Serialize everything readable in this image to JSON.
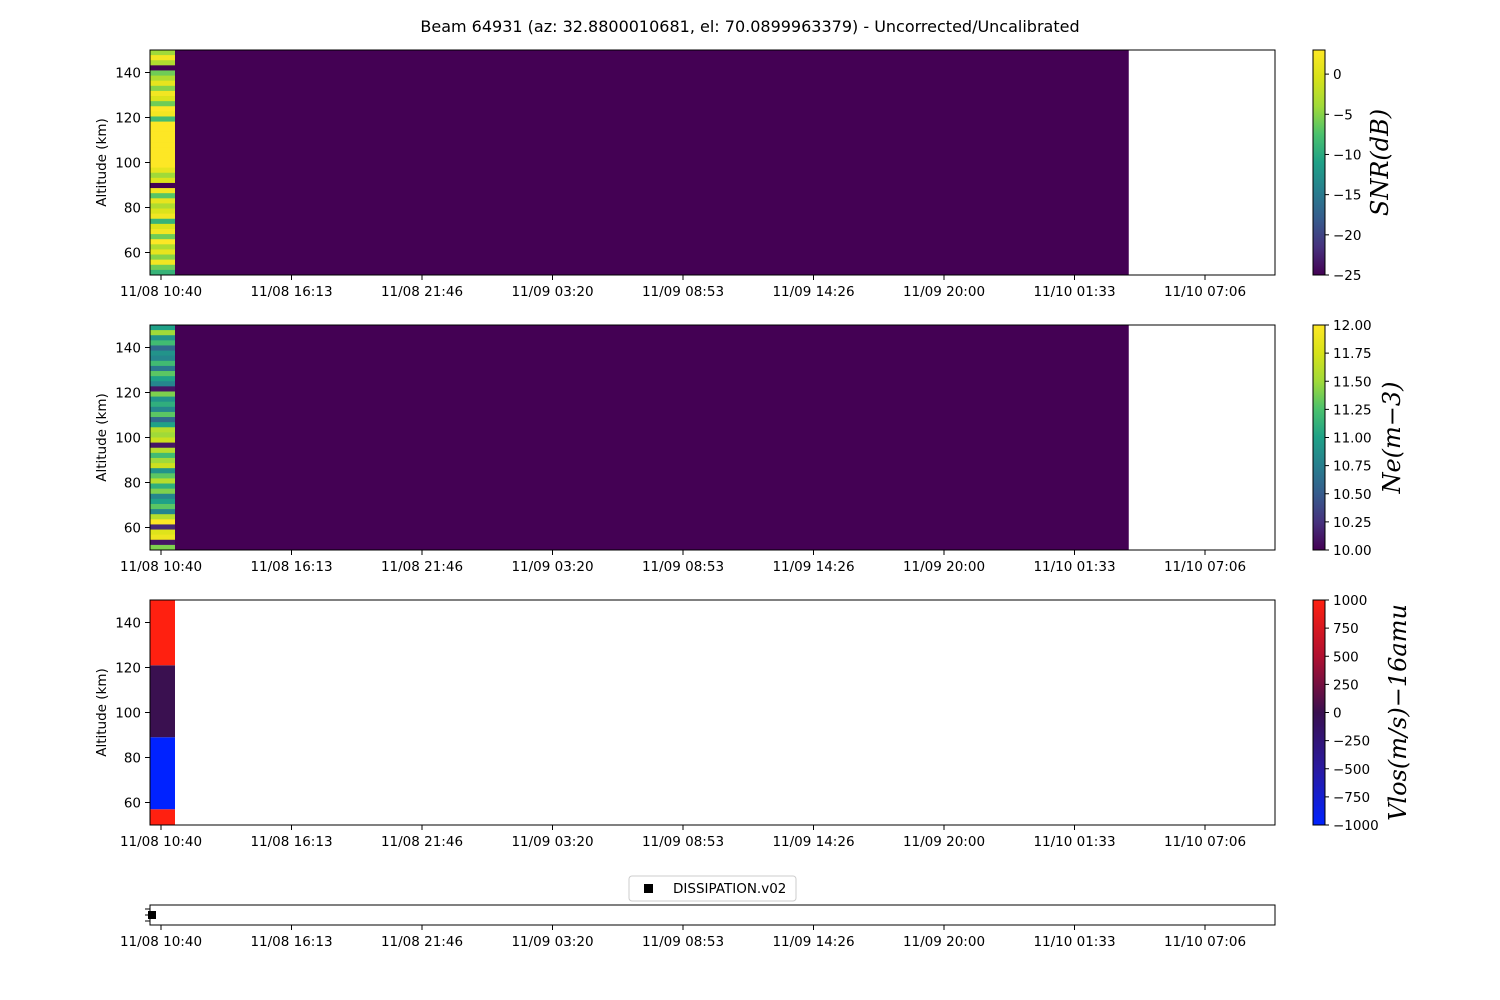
{
  "title": "Beam 64931 (az: 32.8800010681, el: 70.0899963379) - Uncorrected/Uncalibrated",
  "x_ticks": [
    "11/08 10:40",
    "11/08 16:13",
    "11/08 21:46",
    "11/09 03:20",
    "11/09 08:53",
    "11/09 14:26",
    "11/09 20:00",
    "11/10 01:33",
    "11/10 07:06"
  ],
  "chart_data": [
    {
      "type": "heatmap",
      "name": "snr",
      "ylabel": "Altitude (km)",
      "y_ticks": [
        60,
        80,
        100,
        120,
        140
      ],
      "ylim": [
        50,
        150
      ],
      "colorbar": {
        "label": "SNR(dB)",
        "colormap": "viridis",
        "range": [
          -25,
          3
        ],
        "ticks": [
          0,
          -5,
          -10,
          -15,
          -20,
          -25
        ],
        "tick_labels": [
          "0",
          "−5",
          "−10",
          "−15",
          "−20",
          "−25"
        ]
      },
      "first_column": [
        -4,
        2,
        -3,
        -25,
        -6,
        -3,
        1,
        -5,
        2,
        0,
        -6,
        3,
        2,
        -8,
        3,
        3,
        3,
        3,
        3,
        3,
        3,
        3,
        3,
        1,
        -4,
        0,
        -25,
        2,
        -7,
        1,
        -3,
        0,
        2,
        -9,
        0,
        2,
        -6,
        3,
        -3,
        1,
        -5,
        2,
        -6,
        -9
      ],
      "fill_value": -25,
      "coverage_fraction": 0.87
    },
    {
      "type": "heatmap",
      "name": "ne",
      "ylabel": "Altitude (km)",
      "y_ticks": [
        60,
        80,
        100,
        120,
        140
      ],
      "ylim": [
        50,
        150
      ],
      "colorbar": {
        "label": "Ne(m−3)",
        "colormap": "viridis",
        "range": [
          10,
          12
        ],
        "ticks": [
          12,
          11.75,
          11.5,
          11.25,
          11,
          10.75,
          10.5,
          10.25,
          10
        ],
        "tick_labels": [
          "12.00",
          "11.75",
          "11.50",
          "11.25",
          "11.00",
          "10.75",
          "10.50",
          "10.25",
          "10.00"
        ]
      },
      "first_column": [
        11.0,
        11.5,
        10.9,
        11.2,
        10.6,
        10.9,
        10.8,
        11.2,
        10.7,
        11.3,
        11.0,
        10.8,
        10.1,
        11.4,
        10.9,
        11.1,
        10.8,
        11.3,
        10.6,
        11.0,
        11.6,
        11.5,
        11.7,
        10.1,
        11.6,
        11.2,
        11.5,
        11.7,
        10.9,
        11.3,
        11.6,
        11.1,
        11.4,
        10.8,
        11.0,
        11.3,
        10.8,
        11.6,
        12.0,
        10.2,
        11.8,
        11.9,
        10.1,
        11.4
      ],
      "fill_value": 10,
      "coverage_fraction": 0.87
    },
    {
      "type": "heatmap",
      "name": "vlos",
      "ylabel": "Altitude (km)",
      "y_ticks": [
        60,
        80,
        100,
        120,
        140
      ],
      "ylim": [
        50,
        150
      ],
      "colorbar": {
        "label": "Vlos(m/s)−16amu",
        "colormap": "blue-red",
        "range": [
          -1000,
          1000
        ],
        "ticks": [
          1000,
          750,
          500,
          250,
          0,
          -250,
          -500,
          -750,
          -1000
        ],
        "tick_labels": [
          "1000",
          "750",
          "500",
          "250",
          "0",
          "−250",
          "−500",
          "−750",
          "−1000"
        ]
      },
      "blocks": [
        {
          "from": 50,
          "to": 57,
          "value": 1000
        },
        {
          "from": 57,
          "to": 89,
          "value": -1000
        },
        {
          "from": 89,
          "to": 121,
          "value": 0
        },
        {
          "from": 121,
          "to": 150,
          "value": 1000
        }
      ]
    },
    {
      "type": "scatter",
      "name": "dissipation",
      "legend": [
        "DISSIPATION.v02"
      ],
      "points": [
        {
          "x": "11/08 10:40",
          "y": 0
        }
      ],
      "marker_color": "#000000"
    }
  ]
}
